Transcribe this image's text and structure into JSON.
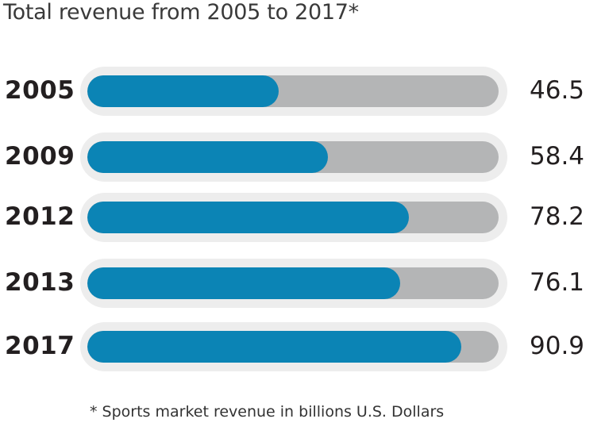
{
  "chart_data": {
    "type": "bar",
    "orientation": "horizontal",
    "title": "Total revenue from 2005 to 2017*",
    "categories": [
      "2005",
      "2009",
      "2012",
      "2013",
      "2017"
    ],
    "values": [
      46.5,
      58.4,
      78.2,
      76.1,
      90.9
    ],
    "value_labels": [
      "46.5",
      "58.4",
      "78.2",
      "76.1",
      "90.9"
    ],
    "xlim": [
      0,
      100
    ],
    "xlabel": "",
    "ylabel": "",
    "grid": false,
    "footnote": "* Sports market revenue in billions U.S. Dollars",
    "colors": {
      "bar": "#0b84b5",
      "track": "#b4b5b6",
      "track_outer": "#ededed"
    }
  }
}
